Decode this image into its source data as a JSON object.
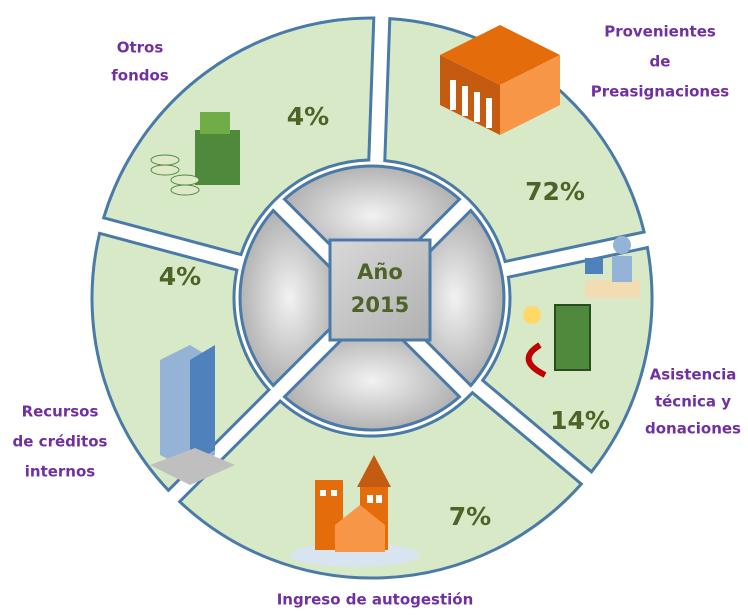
{
  "center": {
    "lines": [
      "Año",
      "2015"
    ]
  },
  "segments": [
    {
      "label": [
        "Provenientes",
        "de",
        "Preasignaciones"
      ],
      "percent": "72%"
    },
    {
      "label": [
        "Asistencia",
        "técnica y",
        "donaciones"
      ],
      "percent": "14%"
    },
    {
      "label": [
        "Ingreso de autogestión"
      ],
      "percent": "7%"
    },
    {
      "label": [
        "Recursos",
        "de créditos",
        "internos"
      ],
      "percent": "4%"
    },
    {
      "label": [
        "Otros",
        "fondos"
      ],
      "percent": "4%"
    }
  ]
}
